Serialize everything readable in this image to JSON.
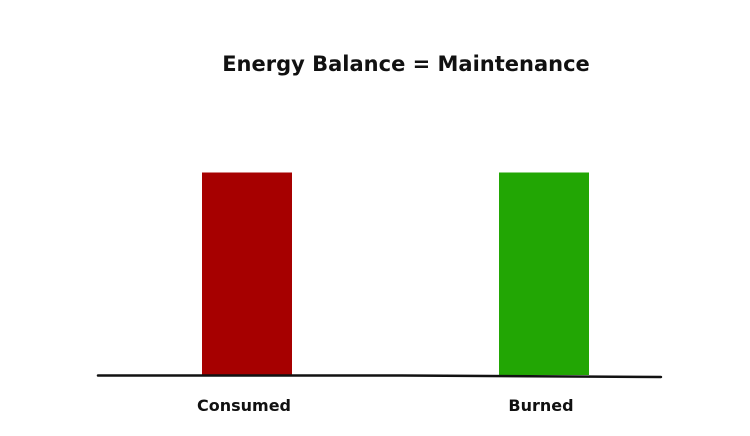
{
  "chart_data": {
    "type": "bar",
    "title": "Energy Balance = Maintenance",
    "categories": [
      "Consumed",
      "Burned"
    ],
    "values": [
      1,
      1
    ],
    "ylim": [
      0,
      1.2
    ],
    "grid": false,
    "legend": "none",
    "colors": [
      "#a60000",
      "#22a604"
    ],
    "axis_color": "#111111"
  }
}
